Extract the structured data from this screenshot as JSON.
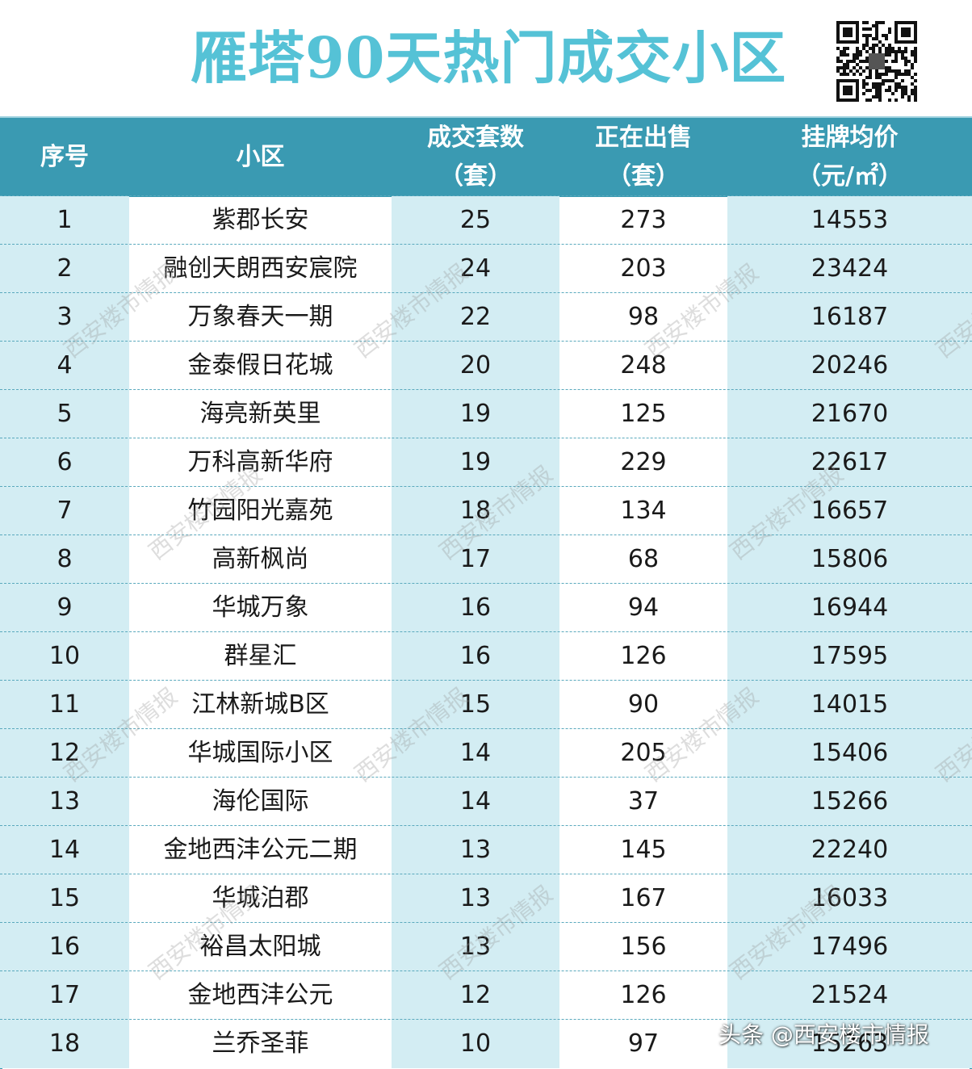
{
  "header": {
    "title": "雁塔90天热门成交小区"
  },
  "chart_data": {
    "type": "table",
    "columns": [
      {
        "line1": "序号",
        "line2": ""
      },
      {
        "line1": "小区",
        "line2": ""
      },
      {
        "line1": "成交套数",
        "line2": "（套）"
      },
      {
        "line1": "正在出售",
        "line2": "（套）"
      },
      {
        "line1": "挂牌均价",
        "line2": "（元/㎡）"
      }
    ],
    "rows": [
      {
        "no": "1",
        "name": "紫郡长安",
        "deals": "25",
        "listed": "273",
        "price": "14553"
      },
      {
        "no": "2",
        "name": "融创天朗西安宸院",
        "deals": "24",
        "listed": "203",
        "price": "23424"
      },
      {
        "no": "3",
        "name": "万象春天一期",
        "deals": "22",
        "listed": "98",
        "price": "16187"
      },
      {
        "no": "4",
        "name": "金泰假日花城",
        "deals": "20",
        "listed": "248",
        "price": "20246"
      },
      {
        "no": "5",
        "name": "海亮新英里",
        "deals": "19",
        "listed": "125",
        "price": "21670"
      },
      {
        "no": "6",
        "name": "万科高新华府",
        "deals": "19",
        "listed": "229",
        "price": "22617"
      },
      {
        "no": "7",
        "name": "竹园阳光嘉苑",
        "deals": "18",
        "listed": "134",
        "price": "16657"
      },
      {
        "no": "8",
        "name": "高新枫尚",
        "deals": "17",
        "listed": "68",
        "price": "15806"
      },
      {
        "no": "9",
        "name": "华城万象",
        "deals": "16",
        "listed": "94",
        "price": "16944"
      },
      {
        "no": "10",
        "name": "群星汇",
        "deals": "16",
        "listed": "126",
        "price": "17595"
      },
      {
        "no": "11",
        "name": "江林新城B区",
        "deals": "15",
        "listed": "90",
        "price": "14015"
      },
      {
        "no": "12",
        "name": "华城国际小区",
        "deals": "14",
        "listed": "205",
        "price": "15406"
      },
      {
        "no": "13",
        "name": "海伦国际",
        "deals": "14",
        "listed": "37",
        "price": "15266"
      },
      {
        "no": "14",
        "name": "金地西沣公元二期",
        "deals": "13",
        "listed": "145",
        "price": "22240"
      },
      {
        "no": "15",
        "name": "华城泊郡",
        "deals": "13",
        "listed": "167",
        "price": "16033"
      },
      {
        "no": "16",
        "name": "裕昌太阳城",
        "deals": "13",
        "listed": "156",
        "price": "17496"
      },
      {
        "no": "17",
        "name": "金地西沣公元",
        "deals": "12",
        "listed": "126",
        "price": "21524"
      },
      {
        "no": "18",
        "name": "兰乔圣菲",
        "deals": "10",
        "listed": "97",
        "price": "15263"
      }
    ]
  },
  "watermark": "西安楼市情报",
  "credit": "头条 @西安楼市情报",
  "colors": {
    "header_bg": "#3a9ab2",
    "title": "#55c2d6",
    "shade": "#d3edf3"
  }
}
